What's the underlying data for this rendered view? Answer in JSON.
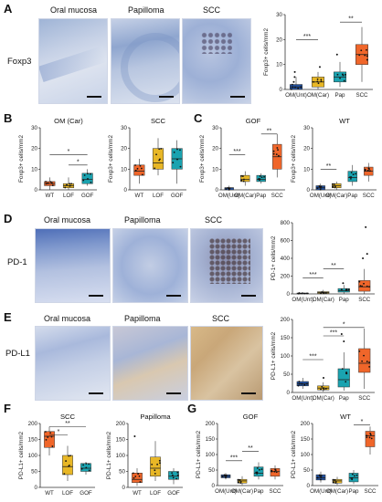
{
  "panels": {
    "A": {
      "letter": "A",
      "titles": [
        "Oral mucosa",
        "Papilloma",
        "SCC"
      ],
      "row_label": "Foxp3"
    },
    "B": {
      "letter": "B"
    },
    "C": {
      "letter": "C"
    },
    "D": {
      "letter": "D",
      "titles": [
        "Oral mucosa",
        "Papilloma",
        "SCC"
      ],
      "row_label": "PD-1"
    },
    "E": {
      "letter": "E",
      "titles": [
        "Oral mucosa",
        "Papilloma",
        "SCC"
      ],
      "row_label": "PD-L1"
    },
    "F": {
      "letter": "F"
    },
    "G": {
      "letter": "G"
    }
  },
  "chart_data": [
    {
      "id": "A",
      "type": "box",
      "title": "",
      "ylabel": "Foxp3+ cells/mm2",
      "ylim": [
        0,
        30
      ],
      "yticks": [
        0,
        10,
        20,
        30
      ],
      "categories": [
        "OM(Unt)",
        "OM(Car)",
        "Pap",
        "SCC"
      ],
      "colors": [
        "#1f4e9c",
        "#e8b726",
        "#1aa3b0",
        "#f0662a"
      ],
      "boxes": [
        [
          0,
          0,
          1,
          2,
          5
        ],
        [
          0,
          1,
          3,
          5,
          7
        ],
        [
          1,
          3,
          5,
          7,
          11
        ],
        [
          3,
          10,
          14,
          18,
          25
        ]
      ],
      "outliers": [
        [
          3,
          5,
          7
        ],
        [
          9
        ],
        [
          14
        ],
        []
      ],
      "sig": [
        {
          "from": 0,
          "to": 1,
          "label": "***",
          "y": 20
        },
        {
          "from": 2,
          "to": 3,
          "label": "**",
          "y": 27
        }
      ]
    },
    {
      "id": "B1",
      "type": "box",
      "title": "OM (Car)",
      "ylabel": "Foxp3+ cells/mm2",
      "ylim": [
        0,
        30
      ],
      "yticks": [
        0,
        10,
        20,
        30
      ],
      "categories": [
        "WT",
        "LOF",
        "GOF"
      ],
      "colors": [
        "#f0662a",
        "#e8b726",
        "#1aa3b0"
      ],
      "boxes": [
        [
          0,
          2,
          3,
          4,
          6
        ],
        [
          0,
          1,
          2,
          3,
          6
        ],
        [
          2,
          3,
          5,
          8,
          10
        ]
      ],
      "outliers": [
        [],
        [],
        []
      ],
      "sig": [
        {
          "from": 0,
          "to": 2,
          "label": "*",
          "y": 17
        },
        {
          "from": 1,
          "to": 2,
          "label": "*",
          "y": 12
        }
      ]
    },
    {
      "id": "B2",
      "type": "box",
      "title": "SCC",
      "ylabel": "Foxp3+ cells/mm2",
      "ylim": [
        0,
        30
      ],
      "yticks": [
        0,
        10,
        20,
        30
      ],
      "categories": [
        "WT",
        "LOF",
        "GOF"
      ],
      "colors": [
        "#f0662a",
        "#e8b726",
        "#1aa3b0"
      ],
      "boxes": [
        [
          3,
          7,
          9,
          12,
          15
        ],
        [
          7,
          10,
          13,
          20,
          25
        ],
        [
          3,
          10,
          15,
          20,
          24
        ]
      ],
      "outliers": [
        [],
        [],
        []
      ],
      "sig": []
    },
    {
      "id": "C1",
      "type": "box",
      "title": "GOF",
      "ylabel": "Foxp3+ cells/mm2",
      "ylim": [
        0,
        30
      ],
      "yticks": [
        0,
        10,
        20,
        30
      ],
      "categories": [
        "OM(Unt)",
        "OM(Car)",
        "Pap",
        "SCC"
      ],
      "colors": [
        "#1f4e9c",
        "#e8b726",
        "#1aa3b0",
        "#f0662a"
      ],
      "boxes": [
        [
          0,
          0,
          1,
          1,
          2
        ],
        [
          2,
          4,
          5,
          7,
          9
        ],
        [
          3,
          4,
          5,
          7,
          8
        ],
        [
          6,
          10,
          16,
          22,
          27
        ]
      ],
      "outliers": [
        [],
        [],
        [],
        []
      ],
      "sig": [
        {
          "from": 0,
          "to": 1,
          "label": "***",
          "y": 17
        },
        {
          "from": 2,
          "to": 3,
          "label": "**",
          "y": 27
        }
      ]
    },
    {
      "id": "C2",
      "type": "box",
      "title": "WT",
      "ylabel": "Foxp3+ cells/mm2",
      "ylim": [
        0,
        30
      ],
      "yticks": [
        0,
        10,
        20,
        30
      ],
      "categories": [
        "OM(Unt)",
        "OM(Car)",
        "Pap",
        "SCC"
      ],
      "colors": [
        "#1f4e9c",
        "#e8b726",
        "#1aa3b0",
        "#f0662a"
      ],
      "boxes": [
        [
          0,
          0,
          1,
          2,
          3
        ],
        [
          0,
          1,
          2,
          3,
          4
        ],
        [
          2,
          4,
          6,
          9,
          12
        ],
        [
          4,
          7,
          9,
          11,
          13
        ]
      ],
      "outliers": [
        [],
        [],
        [],
        []
      ],
      "sig": [
        {
          "from": 0,
          "to": 1,
          "label": "**",
          "y": 10
        }
      ]
    },
    {
      "id": "D",
      "type": "box",
      "title": "",
      "ylabel": "PD-1+ cells/mm2",
      "ylim": [
        0,
        800
      ],
      "yticks": [
        0,
        200,
        400,
        600,
        800
      ],
      "categories": [
        "OM(Unt)",
        "OM(Car)",
        "Pap",
        "SCC"
      ],
      "colors": [
        "#1f4e9c",
        "#e8b726",
        "#1aa3b0",
        "#f0662a"
      ],
      "boxes": [
        [
          0,
          2,
          5,
          10,
          20
        ],
        [
          0,
          5,
          15,
          25,
          45
        ],
        [
          0,
          20,
          35,
          60,
          100
        ],
        [
          0,
          30,
          80,
          150,
          280
        ]
      ],
      "outliers": [
        [],
        [],
        [
          120
        ],
        [
          400,
          450,
          750
        ]
      ],
      "sig": [
        {
          "from": 0,
          "to": 1,
          "label": "***",
          "y": 180
        },
        {
          "from": 1,
          "to": 2,
          "label": "**",
          "y": 280
        }
      ]
    },
    {
      "id": "E",
      "type": "box",
      "title": "",
      "ylabel": "PD-L1+ cells/mm2",
      "ylim": [
        0,
        200
      ],
      "yticks": [
        0,
        50,
        100,
        150,
        200
      ],
      "categories": [
        "OM(Unt)",
        "OM(Car)",
        "Pap",
        "SCC"
      ],
      "colors": [
        "#1f4e9c",
        "#e8b726",
        "#1aa3b0",
        "#f0662a"
      ],
      "boxes": [
        [
          10,
          18,
          24,
          30,
          40
        ],
        [
          2,
          7,
          12,
          18,
          28
        ],
        [
          5,
          15,
          35,
          65,
          110
        ],
        [
          10,
          55,
          80,
          120,
          175
        ]
      ],
      "outliers": [
        [],
        [
          40
        ],
        [
          140,
          160
        ],
        []
      ],
      "sig": [
        {
          "from": 0,
          "to": 1,
          "label": "***",
          "y": 90
        },
        {
          "from": 1,
          "to": 2,
          "label": "***",
          "y": 155
        },
        {
          "from": 1,
          "to": 3,
          "label": "*",
          "y": 178
        }
      ]
    },
    {
      "id": "F1",
      "type": "box",
      "title": "SCC",
      "ylabel": "PD-L1+ cells/mm2",
      "ylim": [
        0,
        200
      ],
      "yticks": [
        0,
        50,
        100,
        150,
        200
      ],
      "categories": [
        "WT",
        "LOF",
        "GOF"
      ],
      "colors": [
        "#f0662a",
        "#e8b726",
        "#1aa3b0"
      ],
      "boxes": [
        [
          100,
          125,
          160,
          175,
          190
        ],
        [
          20,
          40,
          65,
          100,
          130
        ],
        [
          40,
          50,
          60,
          75,
          80
        ]
      ],
      "outliers": [
        [],
        [],
        []
      ],
      "sig": [
        {
          "from": 0,
          "to": 2,
          "label": "**",
          "y": 190
        },
        {
          "from": 0,
          "to": 1,
          "label": "*",
          "y": 165
        }
      ]
    },
    {
      "id": "F2",
      "type": "box",
      "title": "Papilloma",
      "ylabel": "PD-L1+ cells/mm2",
      "ylim": [
        0,
        200
      ],
      "yticks": [
        0,
        50,
        100,
        150,
        200
      ],
      "categories": [
        "WT",
        "LOF",
        "GOF"
      ],
      "colors": [
        "#f0662a",
        "#e8b726",
        "#1aa3b0"
      ],
      "boxes": [
        [
          5,
          15,
          25,
          45,
          60
        ],
        [
          20,
          35,
          60,
          95,
          145
        ],
        [
          10,
          25,
          35,
          50,
          60
        ]
      ],
      "outliers": [
        [
          160
        ],
        [],
        []
      ],
      "sig": []
    },
    {
      "id": "G1",
      "type": "box",
      "title": "GOF",
      "ylabel": "PD-L1+ cells/mm2",
      "ylim": [
        0,
        200
      ],
      "yticks": [
        0,
        50,
        100,
        150,
        200
      ],
      "categories": [
        "OM(Unt)",
        "OM(Car)",
        "Pap",
        "SCC"
      ],
      "colors": [
        "#1f4e9c",
        "#e8b726",
        "#1aa3b0",
        "#f0662a"
      ],
      "boxes": [
        [
          20,
          25,
          30,
          35,
          40
        ],
        [
          2,
          8,
          15,
          20,
          30
        ],
        [
          20,
          30,
          40,
          60,
          75
        ],
        [
          20,
          30,
          45,
          55,
          65
        ]
      ],
      "outliers": [
        [],
        [],
        [],
        []
      ],
      "sig": [
        {
          "from": 0,
          "to": 1,
          "label": "***",
          "y": 80
        },
        {
          "from": 1,
          "to": 2,
          "label": "**",
          "y": 110
        }
      ]
    },
    {
      "id": "G2",
      "type": "box",
      "title": "WT",
      "ylabel": "PD-L1+ cells/mm2",
      "ylim": [
        0,
        200
      ],
      "yticks": [
        0,
        50,
        100,
        150,
        200
      ],
      "categories": [
        "OM(Unt)",
        "OM(Car)",
        "Pap",
        "SCC"
      ],
      "colors": [
        "#1f4e9c",
        "#e8b726",
        "#1aa3b0",
        "#f0662a"
      ],
      "boxes": [
        [
          10,
          18,
          25,
          35,
          45
        ],
        [
          2,
          8,
          15,
          20,
          28
        ],
        [
          5,
          12,
          25,
          40,
          50
        ],
        [
          100,
          125,
          160,
          175,
          190
        ]
      ],
      "outliers": [
        [],
        [],
        [],
        []
      ],
      "sig": [
        {
          "from": 2,
          "to": 3,
          "label": "*",
          "y": 195
        }
      ]
    }
  ]
}
